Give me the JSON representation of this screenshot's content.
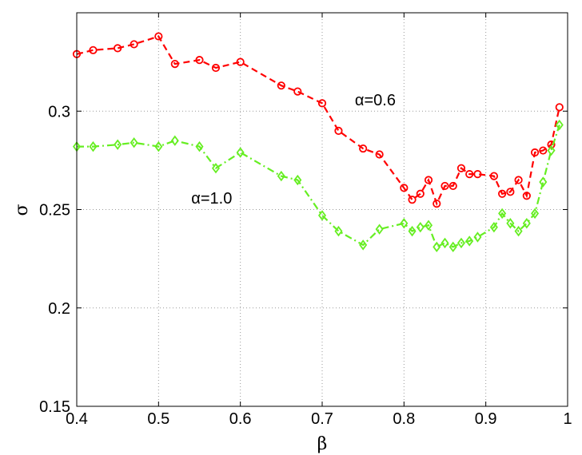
{
  "chart_data": {
    "type": "line",
    "xlabel": "β",
    "ylabel": "σ",
    "xlim": [
      0.4,
      1.0
    ],
    "ylim": [
      0.15,
      0.35
    ],
    "xticks": [
      "0.4",
      "0.5",
      "0.6",
      "0.7",
      "0.8",
      "0.9",
      "1"
    ],
    "yticks": [
      "0.15",
      "0.2",
      "0.25",
      "0.3"
    ],
    "grid": true,
    "annotations": [
      {
        "text": "α=0.6",
        "x": 0.74,
        "y": 0.303
      },
      {
        "text": "α=1.0",
        "x": 0.54,
        "y": 0.253
      }
    ],
    "series": [
      {
        "color": "#ff0000",
        "line_style": "dashed",
        "marker": "circle",
        "x": [
          0.4,
          0.42,
          0.45,
          0.47,
          0.5,
          0.52,
          0.55,
          0.57,
          0.6,
          0.65,
          0.67,
          0.7,
          0.72,
          0.75,
          0.77,
          0.8,
          0.81,
          0.82,
          0.83,
          0.84,
          0.85,
          0.86,
          0.87,
          0.88,
          0.89,
          0.91,
          0.92,
          0.93,
          0.94,
          0.95,
          0.96,
          0.97,
          0.98,
          0.99
        ],
        "y": [
          0.329,
          0.331,
          0.332,
          0.334,
          0.338,
          0.324,
          0.326,
          0.322,
          0.325,
          0.313,
          0.31,
          0.304,
          0.29,
          0.281,
          0.278,
          0.261,
          0.255,
          0.258,
          0.265,
          0.253,
          0.262,
          0.262,
          0.271,
          0.268,
          0.268,
          0.267,
          0.258,
          0.259,
          0.265,
          0.257,
          0.279,
          0.28,
          0.283,
          0.302
        ]
      },
      {
        "color": "#66ee22",
        "line_style": "dashdot",
        "marker": "diamond",
        "x": [
          0.4,
          0.42,
          0.45,
          0.47,
          0.5,
          0.52,
          0.55,
          0.57,
          0.6,
          0.65,
          0.67,
          0.7,
          0.72,
          0.75,
          0.77,
          0.8,
          0.81,
          0.82,
          0.83,
          0.84,
          0.85,
          0.86,
          0.87,
          0.88,
          0.89,
          0.91,
          0.92,
          0.93,
          0.94,
          0.95,
          0.96,
          0.97,
          0.98,
          0.99
        ],
        "y": [
          0.282,
          0.282,
          0.283,
          0.284,
          0.282,
          0.285,
          0.282,
          0.271,
          0.279,
          0.267,
          0.265,
          0.247,
          0.239,
          0.232,
          0.24,
          0.243,
          0.239,
          0.241,
          0.242,
          0.231,
          0.233,
          0.231,
          0.233,
          0.234,
          0.236,
          0.241,
          0.248,
          0.243,
          0.239,
          0.243,
          0.248,
          0.264,
          0.28,
          0.293
        ]
      }
    ]
  }
}
